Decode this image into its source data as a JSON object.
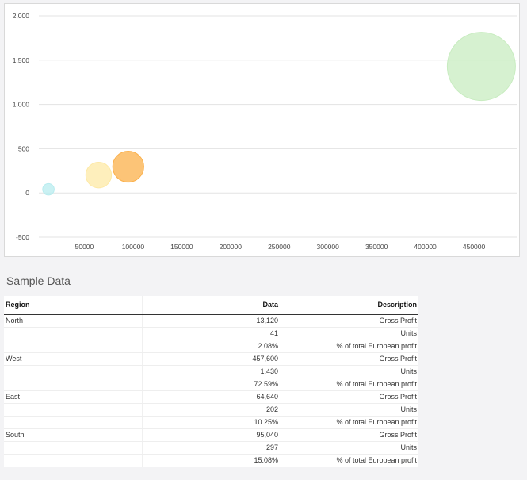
{
  "chart_data": {
    "type": "scatter",
    "xlim": [
      0,
      490000
    ],
    "ylim": [
      -500,
      2000
    ],
    "x_ticks": [
      "50000",
      "100000",
      "150000",
      "200000",
      "250000",
      "300000",
      "350000",
      "400000",
      "450000"
    ],
    "x_tick_values": [
      50000,
      100000,
      150000,
      200000,
      250000,
      300000,
      350000,
      400000,
      450000
    ],
    "y_ticks": [
      "-500",
      "0",
      "500",
      "1,000",
      "1,500",
      "2,000"
    ],
    "y_tick_values": [
      -500,
      0,
      500,
      1000,
      1500,
      2000
    ],
    "grid": true,
    "points": [
      {
        "region": "North",
        "x": 13120,
        "y": 41,
        "size": 2.08,
        "color": "#b8ecef"
      },
      {
        "region": "West",
        "x": 457600,
        "y": 1430,
        "size": 72.59,
        "color": "#c8ecc0"
      },
      {
        "region": "East",
        "x": 64640,
        "y": 202,
        "size": 10.25,
        "color": "#fde9a6"
      },
      {
        "region": "South",
        "x": 95040,
        "y": 297,
        "size": 15.08,
        "color": "#fbb04a"
      }
    ]
  },
  "section_title": "Sample Data",
  "table": {
    "headers": [
      "Region",
      "Data",
      "Description"
    ],
    "rows": [
      [
        "North",
        "13,120",
        "Gross Profit"
      ],
      [
        "",
        "41",
        "Units"
      ],
      [
        "",
        "2.08%",
        "% of total European profit"
      ],
      [
        "West",
        "457,600",
        "Gross Profit"
      ],
      [
        "",
        "1,430",
        "Units"
      ],
      [
        "",
        "72.59%",
        "% of total European profit"
      ],
      [
        "East",
        "64,640",
        "Gross Profit"
      ],
      [
        "",
        "202",
        "Units"
      ],
      [
        "",
        "10.25%",
        "% of total European profit"
      ],
      [
        "South",
        "95,040",
        "Gross Profit"
      ],
      [
        "",
        "297",
        "Units"
      ],
      [
        "",
        "15.08%",
        "% of total European profit"
      ]
    ]
  }
}
